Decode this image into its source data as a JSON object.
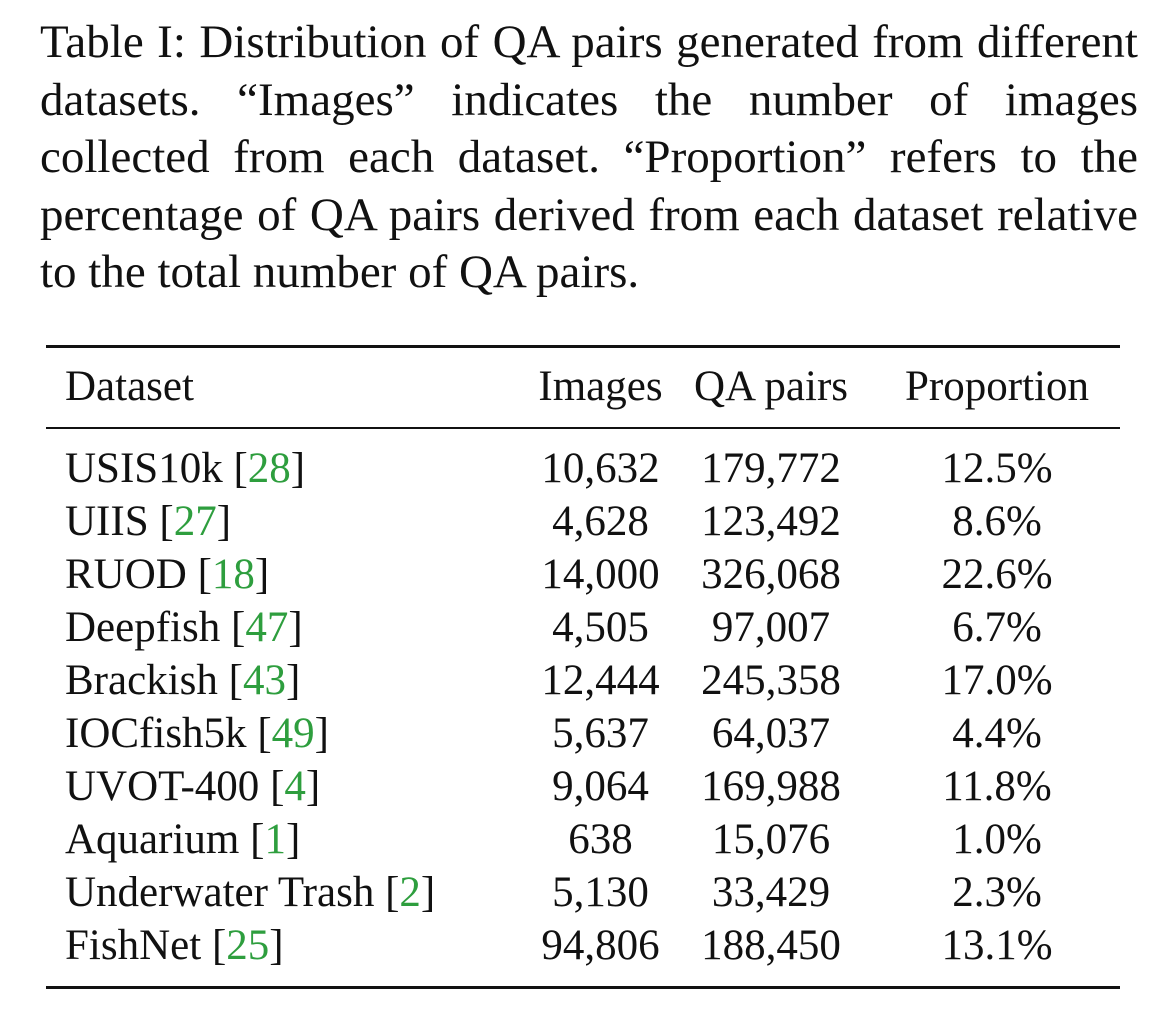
{
  "caption": "Table I: Distribution of QA pairs generated from different datasets. “Images” indicates the number of images collected from each dataset. “Proportion” refers to the percentage of QA pairs derived from each dataset relative to the total number of QA pairs.",
  "table": {
    "headers": {
      "dataset": "Dataset",
      "images": "Images",
      "qa_pairs": "QA pairs",
      "proportion": "Proportion"
    },
    "rows": [
      {
        "name": "USIS10k",
        "ref": "28",
        "images": "10,632",
        "qa_pairs": "179,772",
        "proportion": "12.5%"
      },
      {
        "name": "UIIS",
        "ref": "27",
        "images": "4,628",
        "qa_pairs": "123,492",
        "proportion": "8.6%"
      },
      {
        "name": "RUOD",
        "ref": "18",
        "images": "14,000",
        "qa_pairs": "326,068",
        "proportion": "22.6%"
      },
      {
        "name": "Deepfish",
        "ref": "47",
        "images": "4,505",
        "qa_pairs": "97,007",
        "proportion": "6.7%"
      },
      {
        "name": "Brackish",
        "ref": "43",
        "images": "12,444",
        "qa_pairs": "245,358",
        "proportion": "17.0%"
      },
      {
        "name": "IOCfish5k",
        "ref": "49",
        "images": "5,637",
        "qa_pairs": "64,037",
        "proportion": "4.4%"
      },
      {
        "name": "UVOT-400",
        "ref": "4",
        "images": "9,064",
        "qa_pairs": "169,988",
        "proportion": "11.8%"
      },
      {
        "name": "Aquarium",
        "ref": "1",
        "images": "638",
        "qa_pairs": "15,076",
        "proportion": "1.0%"
      },
      {
        "name": "Underwater Trash",
        "ref": "2",
        "images": "5,130",
        "qa_pairs": "33,429",
        "proportion": "2.3%"
      },
      {
        "name": "FishNet",
        "ref": "25",
        "images": "94,806",
        "qa_pairs": "188,450",
        "proportion": "13.1%"
      }
    ]
  },
  "colors": {
    "text": "#111111",
    "citation": "#2e9e3e"
  }
}
